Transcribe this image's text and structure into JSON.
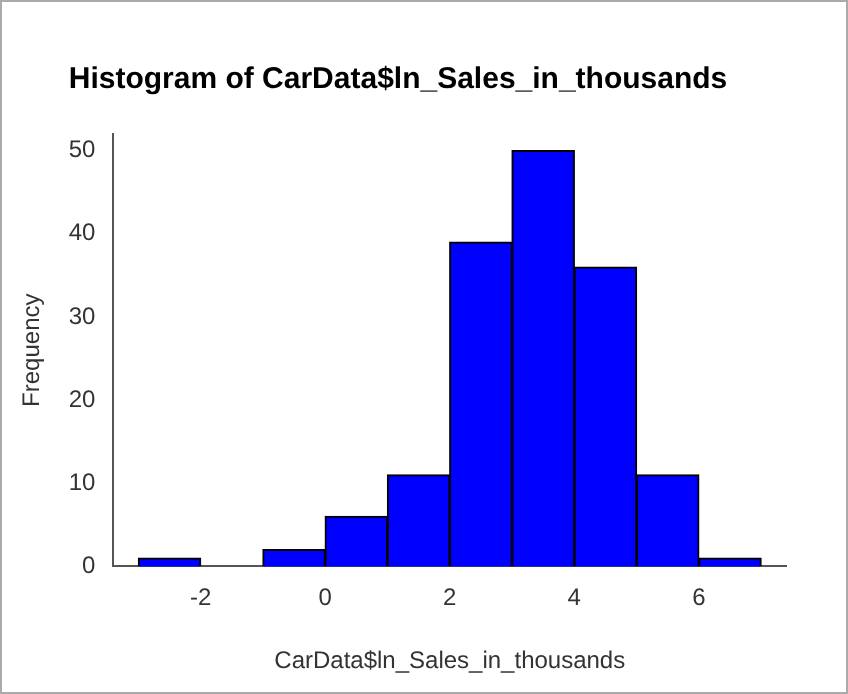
{
  "chart_data": {
    "type": "histogram",
    "title": "Histogram of CarData$ln_Sales_in_thousands",
    "xlabel": "CarData$ln_Sales_in_thousands",
    "ylabel": "Frequency",
    "bins": [
      -3,
      -2,
      -1,
      0,
      1,
      2,
      3,
      4,
      5,
      6,
      7
    ],
    "values": [
      1,
      0,
      2,
      6,
      11,
      39,
      50,
      36,
      11,
      1
    ],
    "color": "#0000ff",
    "xlim": [
      -3.4,
      7.4
    ],
    "xticks": [
      -2,
      0,
      2,
      4,
      6
    ],
    "ylim": [
      0,
      52
    ],
    "yticks": [
      0,
      10,
      20,
      30,
      40,
      50
    ],
    "grid": false
  }
}
